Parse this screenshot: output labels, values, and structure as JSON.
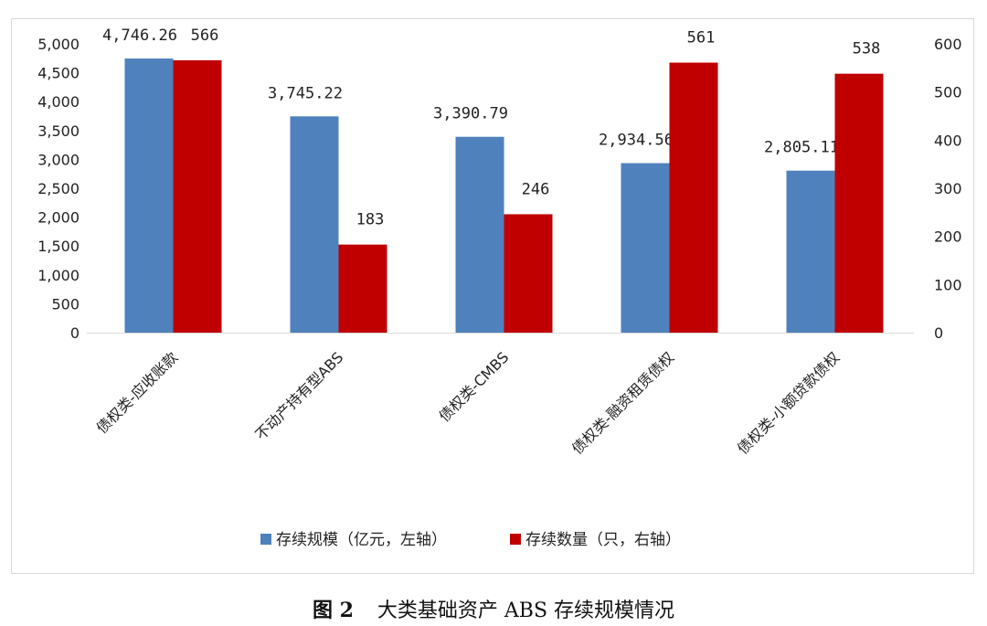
{
  "chart_data": {
    "type": "bar",
    "categories": [
      "债权类-应收账款",
      "不动产持有型ABS",
      "债权类-CMBS",
      "债权类-融资租赁债权",
      "债权类-小额贷款债权"
    ],
    "series": [
      {
        "name": "存续规模（亿元，左轴）",
        "axis": "left",
        "color": "#4f81bd",
        "values": [
          4746.26,
          3745.22,
          3390.79,
          2934.56,
          2805.11
        ],
        "labels": [
          "4,746.26",
          "3,745.22",
          "3,390.79",
          "2,934.56",
          "2,805.11"
        ]
      },
      {
        "name": "存续数量（只，右轴）",
        "axis": "right",
        "color": "#c00000",
        "values": [
          566,
          183,
          246,
          561,
          538
        ],
        "labels": [
          "566",
          "183",
          "246",
          "561",
          "538"
        ]
      }
    ],
    "y_left": {
      "min": 0,
      "max": 5000,
      "step": 500,
      "ticks": [
        "0",
        "500",
        "1,000",
        "1,500",
        "2,000",
        "2,500",
        "3,000",
        "3,500",
        "4,000",
        "4,500",
        "5,000"
      ]
    },
    "y_right": {
      "min": 0,
      "max": 600,
      "step": 100,
      "ticks": [
        "0",
        "100",
        "200",
        "300",
        "400",
        "500",
        "600"
      ]
    },
    "grid": false,
    "legend_position": "bottom"
  },
  "caption": {
    "figure_no": "图 2",
    "title": "大类基础资产 ABS 存续规模情况"
  }
}
